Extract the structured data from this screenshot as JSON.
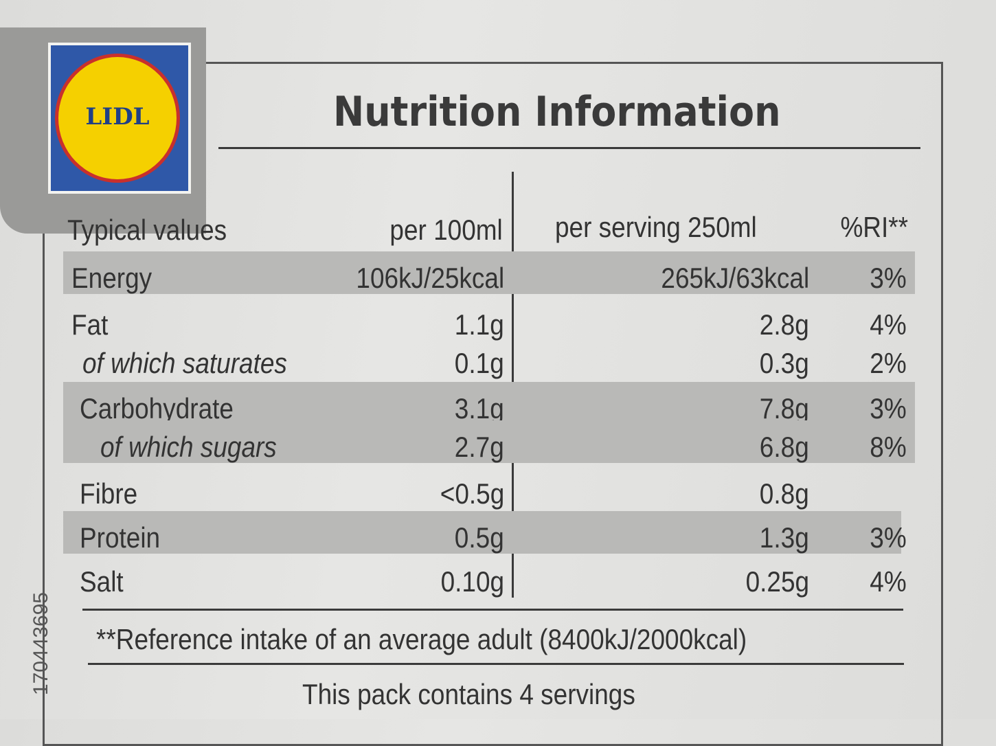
{
  "logo": "LIDL",
  "title": "Nutrition Information",
  "table": {
    "header": [
      "Typical values",
      "per 100ml",
      "per serving 250ml",
      "%RI**"
    ],
    "rows": [
      {
        "label": "Energy",
        "per_100ml": "106kJ/25kcal",
        "per_serving": "265kJ/63kcal",
        "ri": "3%"
      },
      {
        "label": "Fat",
        "per_100ml": "1.1g",
        "per_serving": "2.8g",
        "ri": "4%"
      },
      {
        "label": "of which saturates",
        "per_100ml": "0.1g",
        "per_serving": "0.3g",
        "ri": "2%"
      },
      {
        "label": "Carbohydrate",
        "per_100ml": "3.1g",
        "per_serving": "7.8g",
        "ri": "3%"
      },
      {
        "label": "of which sugars",
        "per_100ml": "2.7g",
        "per_serving": "6.8g",
        "ri": "8%"
      },
      {
        "label": "Fibre",
        "per_100ml": "<0.5g",
        "per_serving": "0.8g"
      },
      {
        "label": "Protein",
        "per_100ml": "0.5g",
        "per_serving": "1.3g",
        "ri": "3%"
      },
      {
        "label": "Salt",
        "per_100ml": "0.10g",
        "per_serving": "0.25g",
        "ri": "4%"
      }
    ]
  },
  "footnote": "**Reference intake of an average adult (8400kJ/2000kcal)",
  "servings": "This pack contains 4 servings",
  "code": "170443695"
}
